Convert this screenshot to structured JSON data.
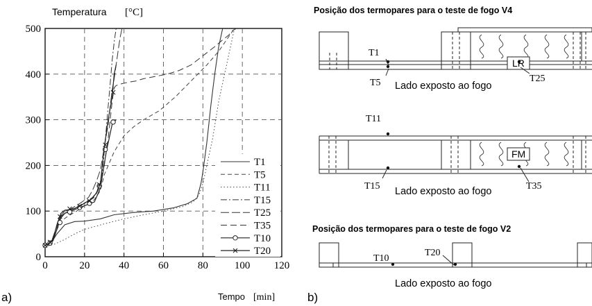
{
  "chart_data": {
    "type": "line",
    "panel_label": "a)",
    "ylabel_text": "Temperatura",
    "ylabel_unit": "[°C]",
    "xlabel_text": "Tempo",
    "xlabel_unit": "[min]",
    "xlim": [
      0,
      120
    ],
    "ylim": [
      0,
      500
    ],
    "xticks": [
      0,
      20,
      40,
      60,
      80,
      100,
      120
    ],
    "yticks": [
      0,
      100,
      200,
      300,
      400,
      500
    ],
    "grid": true,
    "legend_position": "bottom-right",
    "series": [
      {
        "name": "T1",
        "style": "solid",
        "width": 1.1,
        "color": "#333333",
        "x": [
          0,
          3,
          6,
          10,
          15,
          20,
          28,
          35,
          45,
          55,
          65,
          72,
          77,
          79,
          80,
          82,
          84,
          86,
          88,
          90
        ],
        "y": [
          22,
          30,
          50,
          70,
          77,
          78,
          83,
          92,
          97,
          100,
          107,
          116,
          128,
          160,
          185,
          250,
          330,
          400,
          460,
          500
        ]
      },
      {
        "name": "T5",
        "style": "dashed",
        "width": 1.0,
        "color": "#444444",
        "x": [
          0,
          3,
          5,
          8,
          12,
          16,
          20,
          25,
          28,
          30,
          35,
          40,
          45,
          50,
          58,
          66,
          74,
          82,
          88,
          96
        ],
        "y": [
          22,
          30,
          50,
          78,
          90,
          100,
          112,
          125,
          145,
          180,
          230,
          265,
          285,
          300,
          320,
          350,
          385,
          420,
          450,
          500
        ]
      },
      {
        "name": "T11",
        "style": "dotted",
        "width": 1.0,
        "color": "#444444",
        "x": [
          0,
          5,
          10,
          15,
          20,
          30,
          40,
          50,
          60,
          70,
          75,
          78,
          80,
          82,
          85,
          88,
          91,
          94,
          96
        ],
        "y": [
          22,
          28,
          38,
          50,
          60,
          72,
          83,
          92,
          100,
          110,
          120,
          135,
          160,
          200,
          260,
          340,
          400,
          460,
          500
        ]
      },
      {
        "name": "T15",
        "style": "dashdot",
        "width": 1.0,
        "color": "#333333",
        "x": [
          0,
          3,
          5,
          7,
          10,
          13,
          17,
          20,
          24,
          26,
          28,
          29,
          30,
          31,
          32,
          33,
          34,
          35,
          36
        ],
        "y": [
          22,
          30,
          55,
          85,
          100,
          103,
          108,
          118,
          130,
          140,
          165,
          185,
          230,
          280,
          330,
          380,
          430,
          470,
          500
        ]
      },
      {
        "name": "T25",
        "style": "longdash",
        "width": 1.0,
        "color": "#333333",
        "x": [
          0,
          3,
          5,
          8,
          12,
          18,
          22,
          24,
          26,
          28,
          30,
          32,
          33,
          34,
          35,
          36,
          37,
          38,
          39
        ],
        "y": [
          22,
          30,
          55,
          88,
          102,
          118,
          130,
          145,
          165,
          190,
          240,
          290,
          330,
          365,
          390,
          420,
          450,
          480,
          500
        ]
      },
      {
        "name": "T35",
        "style": "dashed2",
        "width": 1.0,
        "color": "#333333",
        "x": [
          0,
          3,
          5,
          8,
          12,
          18,
          22,
          25,
          28,
          30,
          32,
          34,
          35,
          36,
          38,
          42,
          46,
          50,
          56,
          62,
          68,
          74,
          80,
          86,
          90,
          93,
          95,
          97
        ],
        "y": [
          22,
          30,
          55,
          90,
          100,
          112,
          122,
          130,
          155,
          200,
          260,
          340,
          370,
          375,
          378,
          382,
          385,
          390,
          395,
          400,
          408,
          420,
          440,
          460,
          475,
          485,
          495,
          500
        ]
      },
      {
        "name": "T10",
        "style": "solid-circle",
        "width": 1.2,
        "color": "#222222",
        "x": [
          0,
          2,
          4,
          6,
          8,
          10,
          13,
          16,
          19,
          22,
          25,
          28,
          31,
          34,
          36
        ],
        "y": [
          25,
          27,
          35,
          60,
          85,
          95,
          100,
          105,
          110,
          115,
          120,
          150,
          230,
          290,
          300
        ],
        "marker": "circle",
        "marker_x": [
          0,
          2.5,
          7.5,
          12.5,
          17.5,
          22.5,
          27.5,
          30.5,
          34.5
        ],
        "marker_y": [
          25,
          30,
          75,
          98,
          108,
          117,
          155,
          235,
          295
        ]
      },
      {
        "name": "T20",
        "style": "solid-cross",
        "width": 1.2,
        "color": "#222222",
        "x": [
          0,
          2,
          4,
          6,
          8,
          10,
          12,
          15,
          18,
          21,
          24,
          26,
          28,
          30,
          32,
          34,
          35,
          36
        ],
        "y": [
          25,
          28,
          38,
          70,
          95,
          102,
          103,
          106,
          112,
          120,
          128,
          140,
          160,
          240,
          300,
          350,
          400,
          420
        ],
        "marker": "cross",
        "marker_x": [
          0,
          2.5,
          7.5,
          12.5,
          17.5,
          22.5,
          27.5,
          30.5,
          34.5
        ],
        "marker_y": [
          25,
          32,
          88,
          105,
          111,
          122,
          158,
          245,
          360
        ]
      }
    ]
  },
  "diagram": {
    "panel_label": "b)",
    "title_v4": "Posição dos termopares para o teste de fogo V4",
    "title_v2": "Posição dos termopares para o teste de fogo V2",
    "exposed_label": "Lado exposto ao fogo",
    "insulation_lr": "LR",
    "insulation_fm": "FM",
    "labels": {
      "t1": "T1",
      "t5": "T5",
      "t25": "T25",
      "t11": "T11",
      "t15": "T15",
      "t35": "T35",
      "t10": "T10",
      "t20": "T20"
    }
  }
}
